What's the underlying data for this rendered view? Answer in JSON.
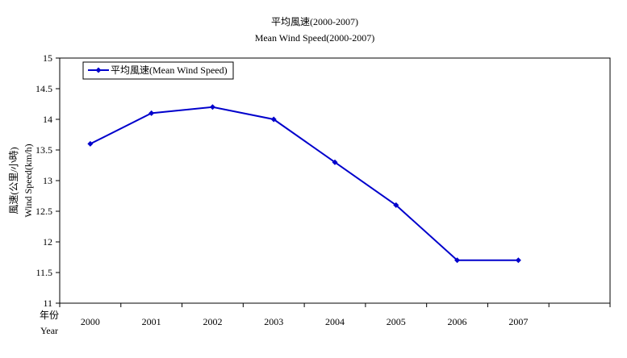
{
  "chart_data": {
    "type": "line",
    "title": "平均風速(2000-2007)",
    "subtitle": "Mean Wind Speed(2000-2007)",
    "ylabel_zh": "風速(公里/小時)",
    "ylabel_en": "Wind Speed(km/h)",
    "xlabel_zh": "年份",
    "xlabel_en": "Year",
    "categories": [
      "2000",
      "2001",
      "2002",
      "2003",
      "2004",
      "2005",
      "2006",
      "2007"
    ],
    "series": [
      {
        "name": "平均風速(Mean Wind Speed)",
        "values": [
          13.6,
          14.1,
          14.2,
          14.0,
          13.3,
          12.6,
          11.7,
          11.7
        ],
        "color": "#0000cc"
      }
    ],
    "ylim": [
      11,
      15
    ],
    "yticks": [
      "11",
      "11.5",
      "12",
      "12.5",
      "13",
      "13.5",
      "14",
      "14.5",
      "15"
    ],
    "grid": false,
    "legend": "top-left"
  }
}
